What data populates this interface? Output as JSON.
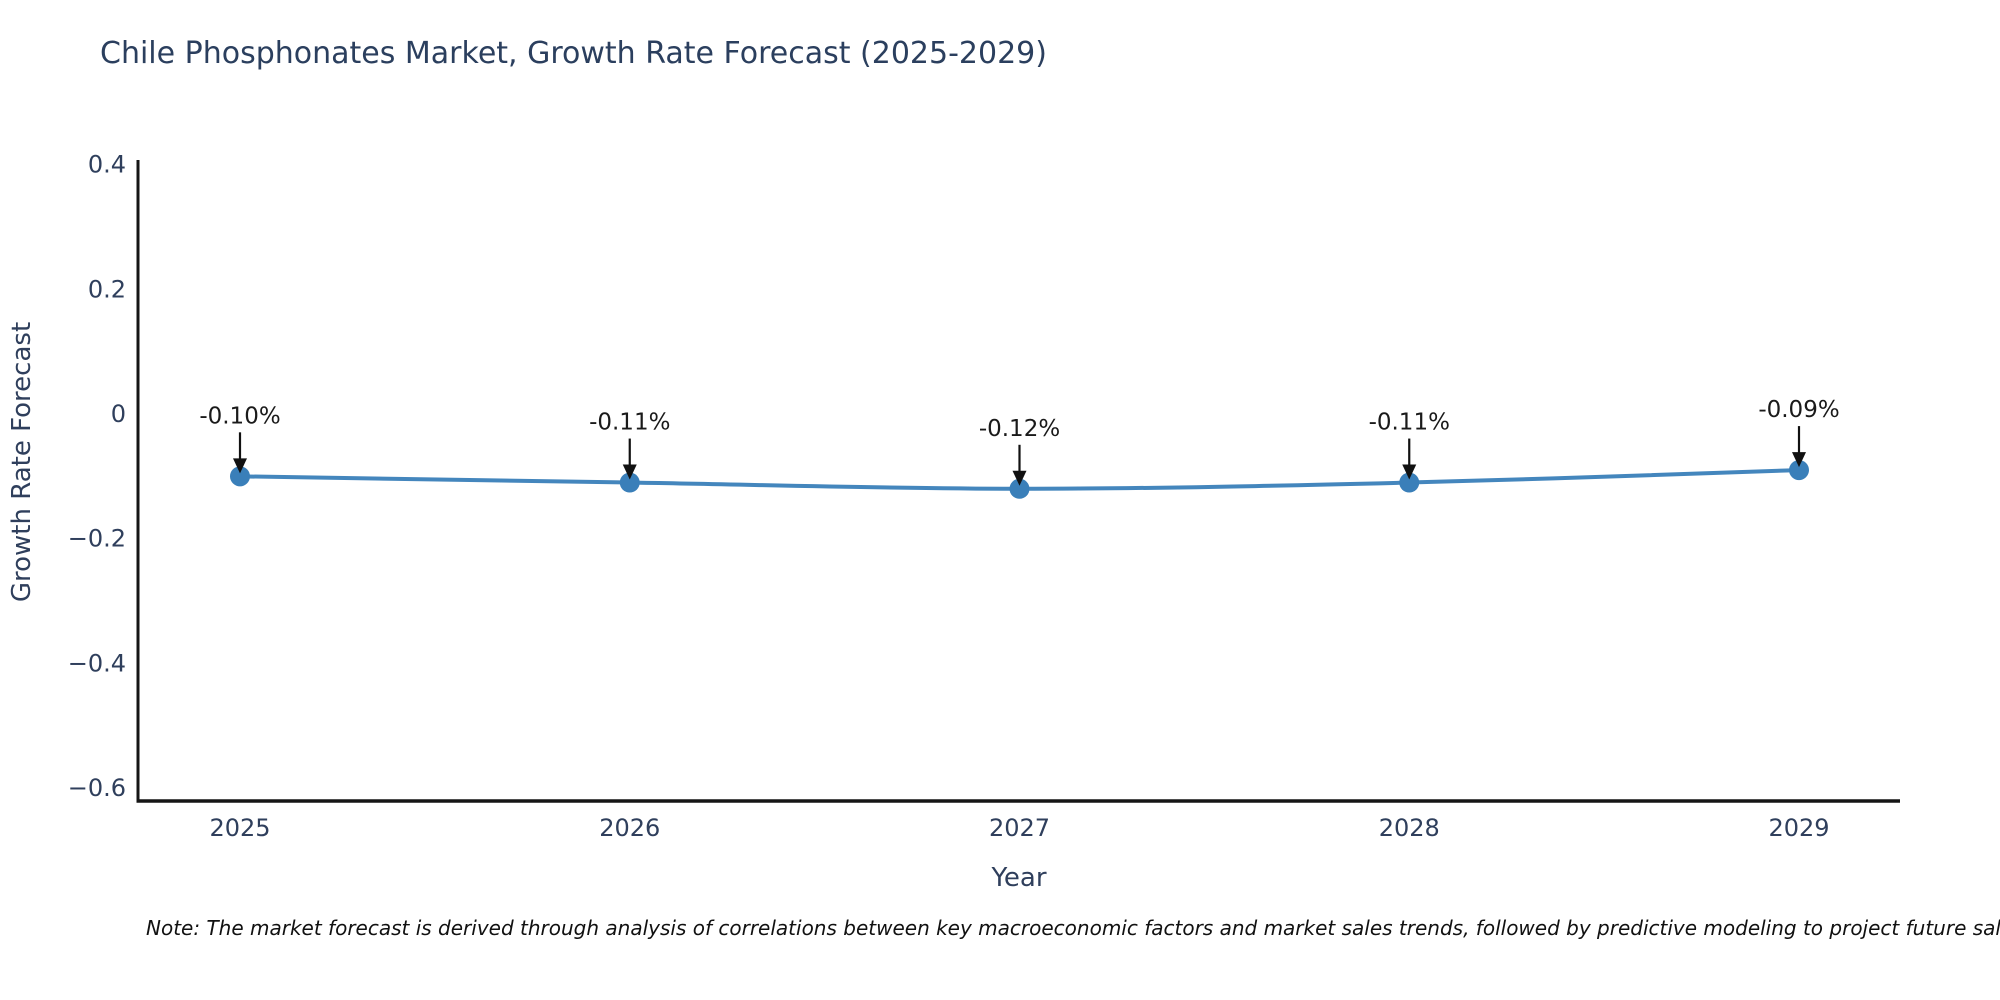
{
  "title": "Chile Phosphonates Market, Growth Rate Forecast (2025-2029)",
  "note": "Note: The market forecast is derived through analysis of correlations between key macroeconomic factors and market sales trends, followed by predictive modeling to project future sales.",
  "colors": {
    "accent_line": "#3a7fb9",
    "marker": "#3a7fb9",
    "axis_line": "#151515",
    "text": "#2f3f5c",
    "annotation_text": "#1a1a1a",
    "background": "#ffffff"
  },
  "chart_data": {
    "type": "line",
    "title": "Chile Phosphonates Market, Growth Rate Forecast (2025-2029)",
    "x": [
      2025,
      2026,
      2027,
      2028,
      2029
    ],
    "values": [
      -0.1,
      -0.11,
      -0.12,
      -0.11,
      -0.09
    ],
    "point_labels": [
      "-0.10%",
      "-0.11%",
      "-0.12%",
      "-0.11%",
      "-0.09%"
    ],
    "xlabel": "Year",
    "ylabel": "Growth Rate Forecast",
    "ylim": [
      -0.6,
      0.4
    ],
    "xtick_labels": [
      "2025",
      "2026",
      "2027",
      "2028",
      "2029"
    ],
    "yticks": [
      0.4,
      0.2,
      0,
      -0.2,
      -0.4,
      -0.6
    ],
    "ytick_labels": [
      "0.4",
      "0.2",
      "0",
      "−0.2",
      "−0.4",
      "−0.6"
    ],
    "grid": false,
    "legend": "none",
    "marker_size": 10,
    "line_width": 4
  }
}
